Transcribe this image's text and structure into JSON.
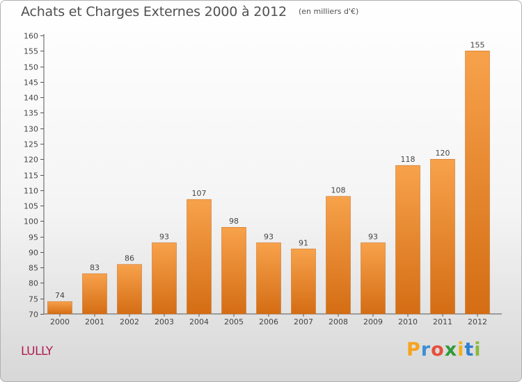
{
  "title": "Achats et Charges Externes 2000 à 2012",
  "unit": "(en milliers d'€)",
  "commune": "LULLY",
  "logo": {
    "letters": [
      "P",
      "r",
      "o",
      "x",
      "i",
      "t",
      "i"
    ],
    "colors": [
      "#f6a21c",
      "#3b8fd6",
      "#e84e3c",
      "#2f9a3a",
      "#f0b21a",
      "#2f7fd0",
      "#8ab93a"
    ]
  },
  "colors": {
    "bar_top": "#f7a24b",
    "bar_bottom": "#d46d14",
    "commune": "#b01c52"
  },
  "chart_data": {
    "type": "bar",
    "title": "Achats et Charges Externes 2000 à 2012",
    "subtitle": "(en milliers d'€)",
    "categories": [
      "2000",
      "2001",
      "2002",
      "2003",
      "2004",
      "2005",
      "2006",
      "2007",
      "2008",
      "2009",
      "2010",
      "2011",
      "2012"
    ],
    "values": [
      74,
      83,
      86,
      93,
      107,
      98,
      93,
      91,
      108,
      93,
      118,
      120,
      155
    ],
    "ylim": [
      70,
      160
    ],
    "yticks": [
      70,
      75,
      80,
      85,
      90,
      95,
      100,
      105,
      110,
      115,
      120,
      125,
      130,
      135,
      140,
      145,
      150,
      155,
      160
    ],
    "grid": false,
    "xlabel": "",
    "ylabel": ""
  }
}
